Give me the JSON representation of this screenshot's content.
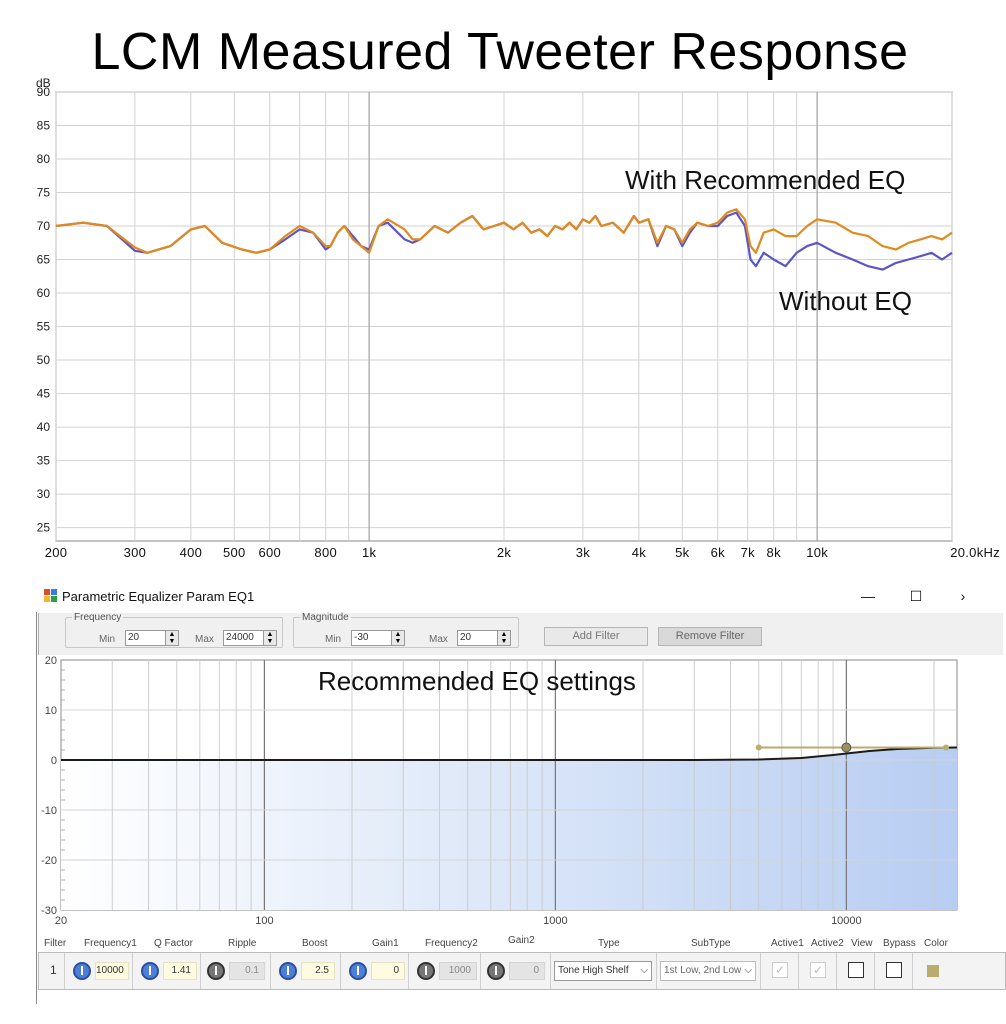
{
  "title": "LCM Measured Tweeter Response",
  "response_chart": {
    "y_unit": "dB",
    "y_ticks": [
      "90",
      "85",
      "80",
      "75",
      "70",
      "65",
      "60",
      "55",
      "50",
      "45",
      "40",
      "35",
      "30",
      "25"
    ],
    "x_ticks": [
      "200",
      "300",
      "400",
      "500",
      "600",
      "800",
      "1k",
      "2k",
      "3k",
      "4k",
      "5k",
      "6k",
      "7k",
      "8k",
      "10k",
      "20.0kHz"
    ],
    "annotation_with": "With Recommended EQ",
    "annotation_without": "Without EQ",
    "color_with": "#e08a1e",
    "color_without": "#5b55c8"
  },
  "chart_data": {
    "type": "line",
    "title": "LCM Measured Tweeter Response",
    "ylabel": "dB",
    "xlabel": "",
    "x_scale": "log",
    "xlim": [
      200,
      20000
    ],
    "ylim": [
      23,
      90
    ],
    "series": [
      {
        "name": "With Recommended EQ",
        "color": "#e08a1e",
        "x": [
          200,
          230,
          260,
          300,
          320,
          360,
          400,
          430,
          470,
          520,
          560,
          600,
          650,
          700,
          750,
          800,
          820,
          850,
          880,
          920,
          960,
          1000,
          1050,
          1100,
          1200,
          1250,
          1300,
          1400,
          1500,
          1600,
          1700,
          1800,
          1900,
          2000,
          2100,
          2200,
          2300,
          2400,
          2500,
          2600,
          2700,
          2800,
          2900,
          3000,
          3100,
          3200,
          3300,
          3500,
          3700,
          3900,
          4000,
          4200,
          4400,
          4600,
          4800,
          5000,
          5200,
          5400,
          5700,
          6000,
          6300,
          6600,
          6900,
          7100,
          7300,
          7600,
          8000,
          8500,
          9000,
          9500,
          10000,
          11000,
          12000,
          13000,
          14000,
          15000,
          16000,
          17000,
          18000,
          19000,
          20000
        ],
        "y": [
          70,
          70.5,
          70,
          66.8,
          66,
          67,
          69.5,
          70,
          67.5,
          66.5,
          66,
          66.5,
          68.5,
          70,
          69,
          67,
          67,
          69,
          70,
          68,
          67,
          66,
          70,
          71,
          69.5,
          68,
          68,
          70,
          69,
          70.5,
          71.5,
          69.5,
          70,
          70.5,
          69.5,
          70.5,
          69,
          69.5,
          68.5,
          70,
          69.5,
          70.5,
          69.5,
          71,
          70.5,
          71.5,
          70,
          70.5,
          69,
          71.5,
          70.5,
          71,
          67.5,
          70,
          69.5,
          67.5,
          69.5,
          70.5,
          70,
          70.5,
          72,
          72.5,
          71,
          67,
          66,
          69,
          69.5,
          68.5,
          68.5,
          70,
          71,
          70.5,
          69,
          68.5,
          67,
          66.5,
          67.5,
          68,
          68.5,
          68,
          69
        ]
      },
      {
        "name": "Without EQ",
        "color": "#5b55c8",
        "x": [
          200,
          230,
          260,
          300,
          320,
          360,
          400,
          430,
          470,
          520,
          560,
          600,
          650,
          700,
          750,
          800,
          820,
          850,
          880,
          920,
          960,
          1000,
          1050,
          1100,
          1200,
          1250,
          1300,
          1400,
          1500,
          1600,
          1700,
          1800,
          1900,
          2000,
          2100,
          2200,
          2300,
          2400,
          2500,
          2600,
          2700,
          2800,
          2900,
          3000,
          3100,
          3200,
          3300,
          3500,
          3700,
          3900,
          4000,
          4200,
          4400,
          4600,
          4800,
          5000,
          5200,
          5400,
          5700,
          6000,
          6300,
          6600,
          6900,
          7100,
          7300,
          7600,
          8000,
          8500,
          9000,
          9500,
          10000,
          11000,
          12000,
          13000,
          14000,
          15000,
          16000,
          17000,
          18000,
          19000,
          20000
        ],
        "y": [
          70,
          70.5,
          70,
          66.3,
          66,
          67,
          69.5,
          70,
          67.5,
          66.5,
          66,
          66.5,
          68,
          69.5,
          69,
          66.5,
          67,
          69,
          70,
          68.5,
          67,
          66.5,
          70,
          70.5,
          68,
          67.5,
          68,
          70,
          69,
          70.5,
          71.5,
          69.5,
          70,
          70.5,
          69.5,
          70.5,
          69,
          69.5,
          68.5,
          70,
          69.5,
          70.5,
          69.5,
          71,
          70.5,
          71.5,
          70,
          70.5,
          69,
          71.5,
          70.5,
          71,
          67,
          70,
          69.5,
          67,
          69,
          70.5,
          70,
          70,
          71.5,
          72,
          70,
          65,
          64,
          66,
          65,
          64,
          66,
          67,
          67.5,
          66,
          65,
          64,
          63.5,
          64.5,
          65,
          65.5,
          66,
          65,
          66
        ]
      }
    ]
  },
  "eq_window": {
    "title": "Parametric Equalizer Param EQ1",
    "minimize": "—",
    "maximize": "☐",
    "close": "›",
    "frequency_group": "Frequency",
    "magnitude_group": "Magnitude",
    "min_label": "Min",
    "max_label": "Max",
    "freq_min": "20",
    "freq_max": "24000",
    "mag_min": "-30",
    "mag_max": "20",
    "add_filter": "Add Filter",
    "remove_filter": "Remove Filter",
    "graph_caption": "Recommended EQ settings",
    "y_ticks": [
      "20",
      "10",
      "0",
      "-10",
      "-20",
      "-30"
    ],
    "x_ticks": [
      "20",
      "100",
      "1000",
      "10000"
    ]
  },
  "eq_curve_data": {
    "type": "line",
    "x_scale": "log",
    "xlim": [
      20,
      24000
    ],
    "ylim": [
      -30,
      20
    ],
    "x": [
      20,
      100,
      1000,
      3000,
      5000,
      7000,
      9000,
      10000,
      12000,
      15000,
      20000,
      24000
    ],
    "y": [
      0,
      0,
      0,
      0,
      0.1,
      0.4,
      1.0,
      1.3,
      1.8,
      2.2,
      2.45,
      2.5
    ],
    "handle_x": [
      5000,
      10000,
      22000
    ],
    "handle_y": [
      2.5,
      2.5,
      2.5
    ]
  },
  "filter_table": {
    "headers": [
      "Filter",
      "Frequency1",
      "Q Factor",
      "Ripple",
      "Boost",
      "Gain1",
      "Frequency2",
      "Gain2",
      "Type",
      "SubType",
      "Active1",
      "Active2",
      "View",
      "Bypass",
      "Color"
    ],
    "row": {
      "index": "1",
      "frequency1": "10000",
      "q_factor": "1.41",
      "ripple": "0.1",
      "boost": "2.5",
      "gain1": "0",
      "frequency2": "1000",
      "gain2": "0",
      "type": "Tone High Shelf",
      "subtype": "1st Low, 2nd Low",
      "color": "#b9ad6e"
    }
  }
}
